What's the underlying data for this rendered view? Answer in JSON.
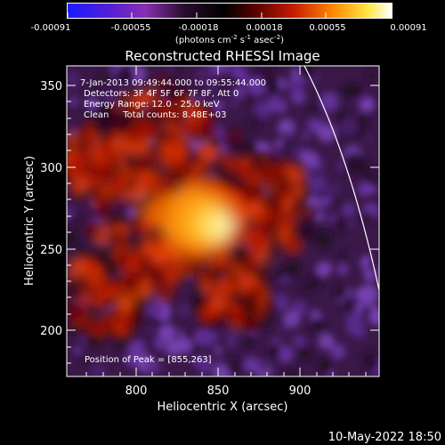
{
  "colorbar": {
    "tick_labels": [
      "-0.00091",
      "-0.00055",
      "-0.00018",
      "0.00018",
      "0.00055",
      "0.00091"
    ],
    "units": "(photons cm",
    "units_exp1": "-2",
    "units_mid": " s",
    "units_exp2": "-1",
    "units_end": " asec",
    "units_exp3": "-2",
    "units_close": ")",
    "gradient_colors": [
      "#1a1aff",
      "#5a1fd1",
      "#8a2fb0",
      "#1c0a1e",
      "#000000",
      "#5a0000",
      "#c81e00",
      "#ff8a00",
      "#ffe84a",
      "#ffffff"
    ]
  },
  "plot": {
    "title": "Reconstructed RHESSI Image",
    "xlabel": "Heliocentric X (arcsec)",
    "ylabel": "Heliocentric Y (arcsec)",
    "x_ticks": [
      "800",
      "850",
      "900"
    ],
    "y_ticks": [
      "350",
      "300",
      "250",
      "200"
    ],
    "info_lines": [
      " 7-Jan-2013 09:49:44.000 to 09:55:44.000",
      "Detectors: 3F 4F 5F 6F 7F 8F, Att 0",
      "Energy Range: 12.0 - 25.0 keV",
      "Clean     Total counts: 8.48E+03"
    ],
    "peak_label": "Position of Peak = [855,263]"
  },
  "footer": {
    "date": "10-May-2022 18:50"
  },
  "image_data": {
    "x_range": [
      758,
      948
    ],
    "y_range": [
      172,
      362
    ],
    "peak": [
      855,
      263
    ],
    "limb_color": "#ffffff"
  }
}
